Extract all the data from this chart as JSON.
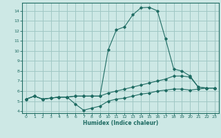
{
  "xlabel": "Humidex (Indice chaleur)",
  "xlim": [
    -0.5,
    23.5
  ],
  "ylim": [
    3.8,
    14.8
  ],
  "yticks": [
    4,
    5,
    6,
    7,
    8,
    9,
    10,
    11,
    12,
    13,
    14
  ],
  "xticks": [
    0,
    1,
    2,
    3,
    4,
    5,
    6,
    7,
    8,
    9,
    10,
    11,
    12,
    13,
    14,
    15,
    16,
    17,
    18,
    19,
    20,
    21,
    22,
    23
  ],
  "bg_color": "#cde8e5",
  "grid_color": "#a0c8c4",
  "line_color": "#1e6b62",
  "line_low_x": [
    0,
    1,
    2,
    3,
    4,
    5,
    6,
    7,
    8,
    9,
    10,
    11,
    12,
    13,
    14,
    15,
    16,
    17,
    18,
    19,
    20,
    21,
    22,
    23
  ],
  "line_low_y": [
    5.2,
    5.5,
    5.2,
    5.3,
    5.4,
    5.4,
    4.7,
    4.1,
    4.3,
    4.5,
    5.0,
    5.2,
    5.3,
    5.5,
    5.7,
    5.8,
    6.0,
    6.1,
    6.2,
    6.2,
    6.1,
    6.2,
    6.3,
    6.3
  ],
  "line_mid_x": [
    0,
    1,
    2,
    3,
    4,
    5,
    6,
    7,
    8,
    9,
    10,
    11,
    12,
    13,
    14,
    15,
    16,
    17,
    18,
    19,
    20,
    21,
    22,
    23
  ],
  "line_mid_y": [
    5.2,
    5.5,
    5.2,
    5.3,
    5.4,
    5.4,
    5.5,
    5.5,
    5.5,
    5.5,
    5.8,
    6.0,
    6.2,
    6.4,
    6.6,
    6.8,
    7.0,
    7.2,
    7.5,
    7.5,
    7.4,
    6.4,
    6.3,
    6.3
  ],
  "line_high_x": [
    0,
    1,
    2,
    3,
    4,
    5,
    6,
    7,
    8,
    9,
    10,
    11,
    12,
    13,
    14,
    15,
    16,
    17,
    18,
    19,
    20,
    21,
    22,
    23
  ],
  "line_high_y": [
    5.2,
    5.5,
    5.2,
    5.3,
    5.4,
    5.4,
    5.5,
    5.5,
    5.5,
    5.5,
    10.1,
    12.1,
    12.4,
    13.6,
    14.3,
    14.35,
    14.0,
    11.2,
    8.2,
    8.0,
    7.5,
    6.4,
    6.3,
    6.3
  ]
}
